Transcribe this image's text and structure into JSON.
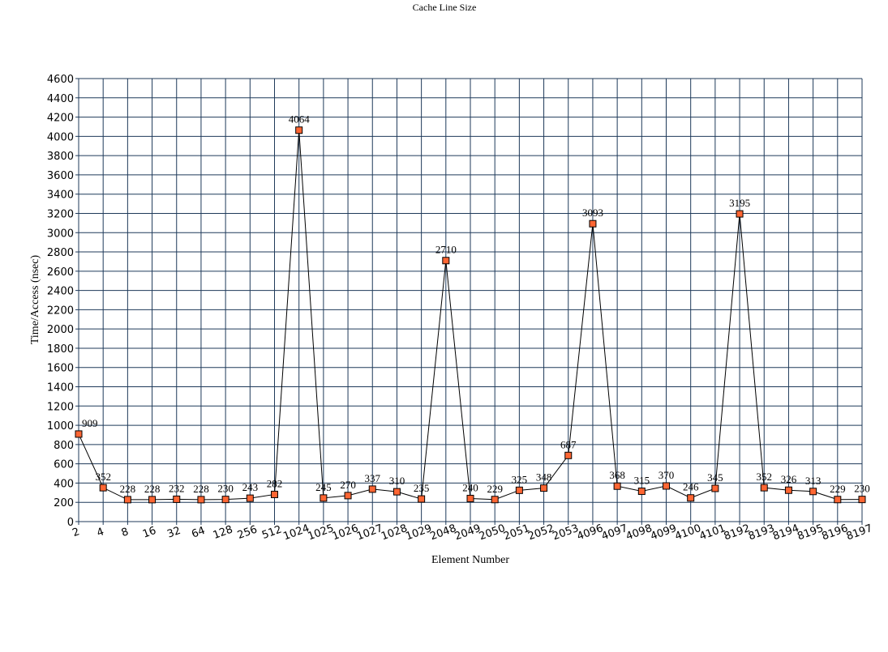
{
  "chart_data": {
    "type": "line",
    "title": "Cache Line Size",
    "xlabel": "Element Number",
    "ylabel": "Time/Access (nsec)",
    "ylim": [
      0,
      4600
    ],
    "ytick_step": 200,
    "grid": true,
    "legend": "none",
    "colors": {
      "grid": "#1f3a5a",
      "line": "#000000",
      "marker_fill": "#ff6633",
      "marker_stroke": "#000000"
    },
    "categories": [
      "2",
      "4",
      "8",
      "16",
      "32",
      "64",
      "128",
      "256",
      "512",
      "1024",
      "1025",
      "1026",
      "1027",
      "1028",
      "1029",
      "2048",
      "2049",
      "2050",
      "2051",
      "2052",
      "2053",
      "4096",
      "4097",
      "4098",
      "4099",
      "4100",
      "4101",
      "8192",
      "8193",
      "8194",
      "8195",
      "8196",
      "8197"
    ],
    "series": [
      {
        "values": [
          909,
          352,
          228,
          228,
          232,
          228,
          230,
          243,
          282,
          4064,
          245,
          270,
          337,
          310,
          235,
          2710,
          240,
          229,
          325,
          348,
          687,
          3093,
          368,
          315,
          370,
          246,
          345,
          3195,
          352,
          326,
          313,
          229,
          230
        ]
      }
    ]
  }
}
